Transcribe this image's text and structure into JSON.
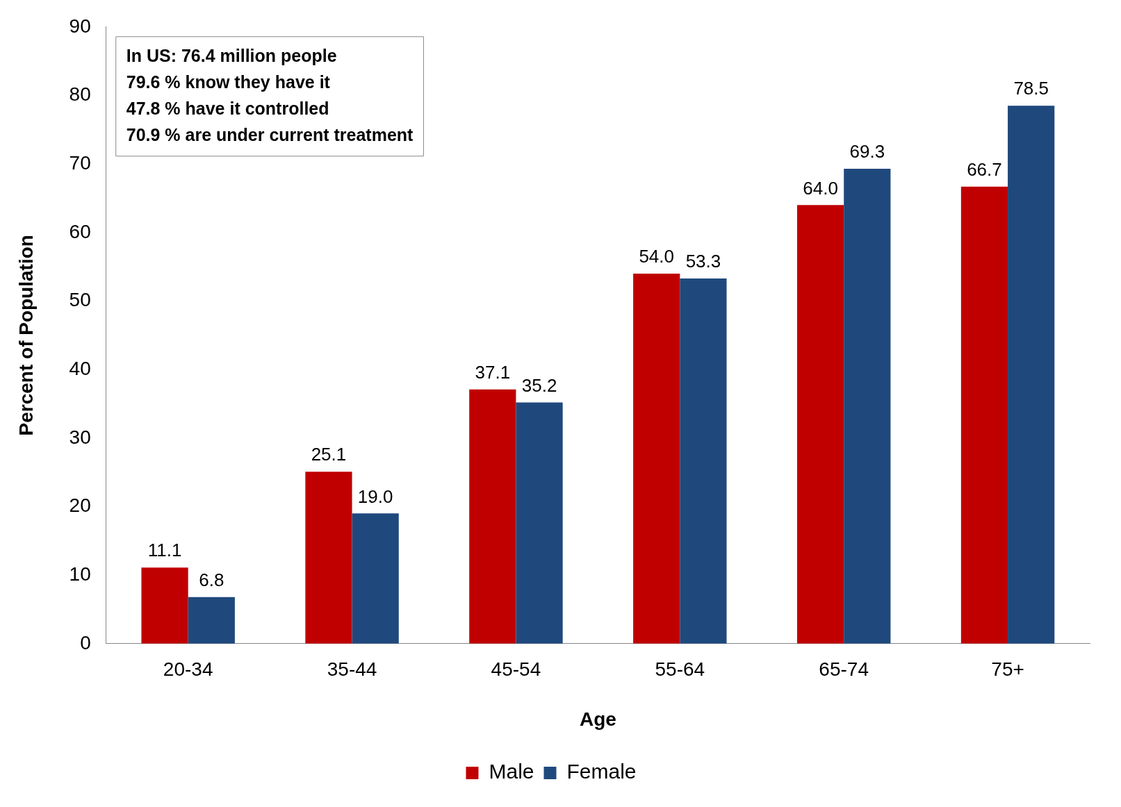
{
  "chart_data": {
    "type": "bar",
    "xlabel": "Age",
    "ylabel": "Percent of Population",
    "categories": [
      "20-34",
      "35-44",
      "45-54",
      "55-64",
      "65-74",
      "75+"
    ],
    "series": [
      {
        "name": "Male",
        "color": "#c00000",
        "values": [
          11.1,
          25.1,
          37.1,
          54.0,
          64.0,
          66.7
        ],
        "value_labels": [
          "11.1",
          "25.1",
          "37.1",
          "54.0",
          "64.0",
          "66.7"
        ]
      },
      {
        "name": "Female",
        "color": "#1f497d",
        "values": [
          6.8,
          19.0,
          35.2,
          53.3,
          69.3,
          78.5
        ],
        "value_labels": [
          "6.8",
          "19.0",
          "35.2",
          "53.3",
          "69.3",
          "78.5"
        ]
      }
    ],
    "ylim": [
      0,
      90
    ],
    "yticks": [
      0,
      10,
      20,
      30,
      40,
      50,
      60,
      70,
      80,
      90
    ],
    "grid": false,
    "legend": "bottom",
    "annotations": [
      "In US: 76.4 million people",
      "79.6 % know they have it",
      "47.8 % have it controlled",
      "70.9 % are under current treatment"
    ]
  }
}
